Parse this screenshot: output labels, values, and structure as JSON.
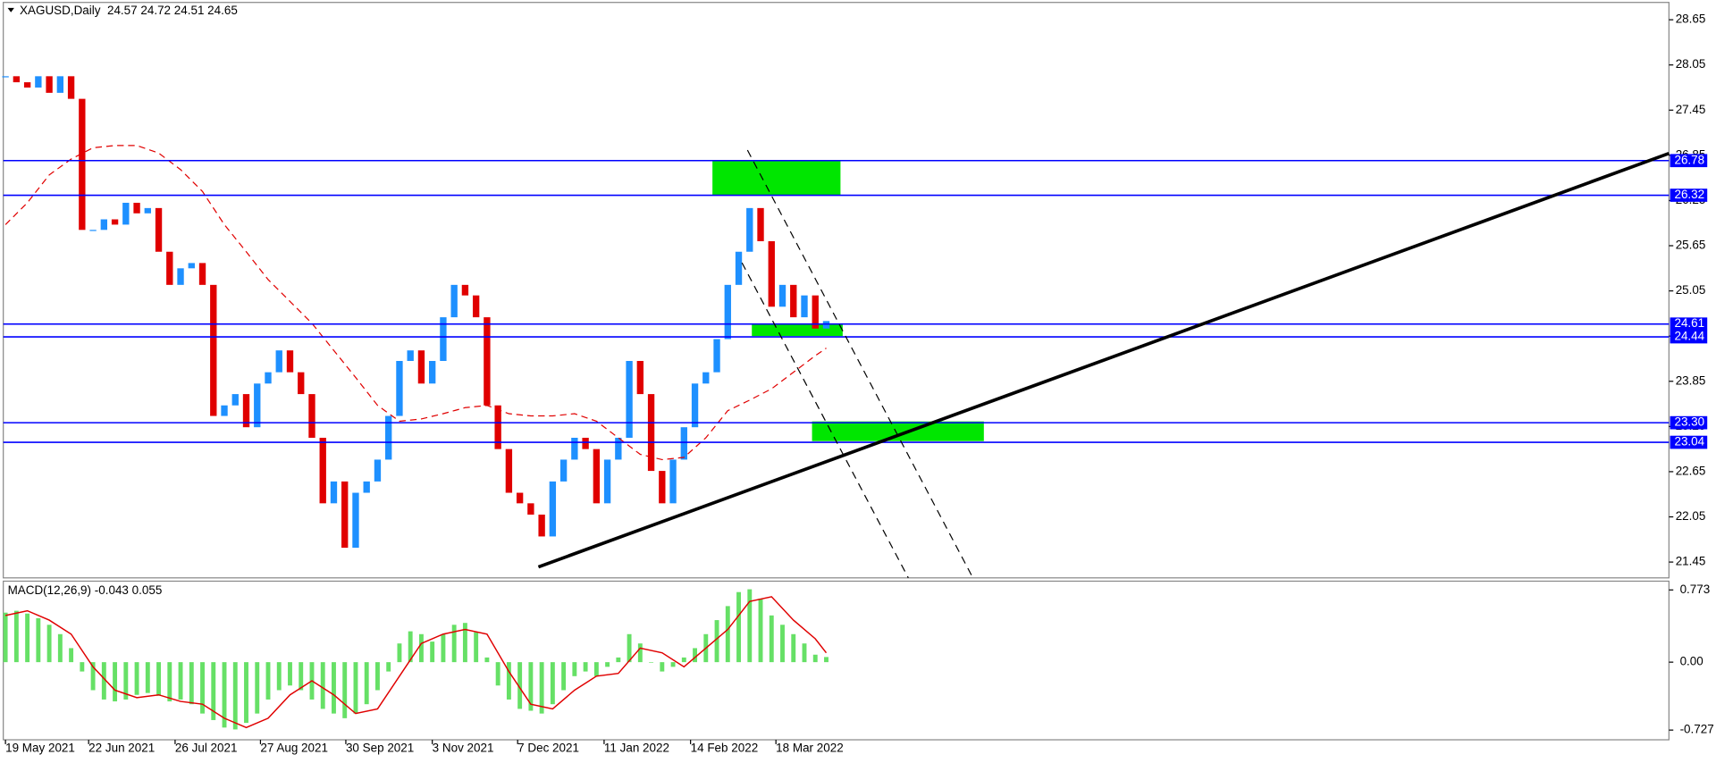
{
  "chart_data": {
    "type": "candlestick",
    "header": "XAGUSD,Daily  24.57 24.72 24.51 24.65",
    "macd_header": "MACD(12,26,9) -0.043 0.055",
    "xlim": [
      -0.5,
      152
    ],
    "xticks": [
      {
        "value": 0,
        "label": "19 May 2021"
      },
      {
        "value": 7.6,
        "label": "22 Jun 2021"
      },
      {
        "value": 15.5,
        "label": "26 Jul 2021"
      },
      {
        "value": 23.3,
        "label": "27 Aug 2021"
      },
      {
        "value": 31.1,
        "label": "30 Sep 2021"
      },
      {
        "value": 39,
        "label": "3 Nov 2021"
      },
      {
        "value": 46.8,
        "label": "7 Dec 2021"
      },
      {
        "value": 54.7,
        "label": "11 Jan 2022"
      },
      {
        "value": 62.6,
        "label": "14 Feb 2022"
      },
      {
        "value": 70.4,
        "label": "18 Mar 2022"
      }
    ],
    "ylim": [
      21.24,
      28.88
    ],
    "yticks": [
      21.45,
      22.05,
      22.65,
      23.25,
      23.85,
      24.45,
      25.05,
      25.65,
      26.25,
      26.85,
      27.45,
      28.05,
      28.65
    ],
    "x": [
      0,
      1,
      2,
      3,
      4,
      5,
      6,
      7,
      8,
      9,
      10,
      11,
      12,
      13,
      14,
      15,
      16,
      17,
      18,
      19,
      20,
      21,
      22,
      23,
      24,
      25,
      26,
      27,
      28,
      29,
      30,
      31,
      32,
      33,
      34,
      35,
      36,
      37,
      38,
      39,
      40,
      41,
      42,
      43,
      44,
      45,
      46,
      47,
      48,
      49,
      50,
      51,
      52,
      53,
      54,
      55,
      56,
      57,
      58,
      59,
      60,
      61,
      62,
      63,
      64,
      65,
      66,
      67,
      68,
      69,
      70,
      71,
      72,
      73,
      74,
      75
    ],
    "price": {
      "up_color": "#1e90ff",
      "down_color": "#e00000",
      "values": [
        27.9,
        27.82,
        27.75,
        27.9,
        27.68,
        27.9,
        27.6,
        25.86,
        25.86,
        26.0,
        25.93,
        26.22,
        26.08,
        26.15,
        25.57,
        25.13,
        25.35,
        25.42,
        25.13,
        23.39,
        23.53,
        23.68,
        23.24,
        23.82,
        23.97,
        24.26,
        23.97,
        23.68,
        23.1,
        22.23,
        22.52,
        21.64,
        22.37,
        22.52,
        22.81,
        23.39,
        24.12,
        24.26,
        23.82,
        24.12,
        24.7,
        25.13,
        24.99,
        24.7,
        23.53,
        22.95,
        22.37,
        22.23,
        22.08,
        21.79,
        22.52,
        22.81,
        23.1,
        22.95,
        22.23,
        22.81,
        23.1,
        24.12,
        23.68,
        22.66,
        22.23,
        22.81,
        23.24,
        23.82,
        23.97,
        24.41,
        25.13,
        25.57,
        26.15,
        25.71,
        24.84,
        25.13,
        24.7,
        24.99,
        24.55,
        24.65
      ]
    },
    "ma": {
      "color": "#e00000",
      "x": [
        0,
        2,
        4,
        6,
        8,
        10,
        12,
        14,
        16,
        18,
        20,
        22,
        24,
        26,
        28,
        30,
        32,
        34,
        36,
        38,
        40,
        42,
        44,
        46,
        48,
        50,
        52,
        54,
        56,
        58,
        60,
        62,
        64,
        66,
        68,
        70,
        72,
        74,
        75
      ],
      "values": [
        25.93,
        26.22,
        26.59,
        26.8,
        26.95,
        26.98,
        26.98,
        26.88,
        26.66,
        26.37,
        25.93,
        25.57,
        25.2,
        24.91,
        24.62,
        24.26,
        23.9,
        23.53,
        23.32,
        23.35,
        23.42,
        23.5,
        23.53,
        23.42,
        23.39,
        23.39,
        23.42,
        23.32,
        23.1,
        22.88,
        22.81,
        22.84,
        23.1,
        23.46,
        23.6,
        23.75,
        23.97,
        24.19,
        24.29
      ]
    },
    "levels": {
      "color": "#0000ff",
      "values": [
        26.78,
        26.32,
        24.61,
        24.44,
        {
          "value": 23.3,
          "label": "23.30"
        },
        23.04
      ]
    },
    "macd": {
      "ylim": [
        -0.831,
        0.867
      ],
      "yticks": [
        -0.727,
        {
          "value": 0,
          "label": "0.00"
        },
        0.773
      ],
      "color": "#66e066",
      "values": [
        0.53,
        0.55,
        0.52,
        0.47,
        0.4,
        0.3,
        0.15,
        -0.1,
        -0.3,
        -0.4,
        -0.42,
        -0.4,
        -0.35,
        -0.33,
        -0.36,
        -0.42,
        -0.4,
        -0.45,
        -0.55,
        -0.62,
        -0.7,
        -0.72,
        -0.65,
        -0.55,
        -0.4,
        -0.3,
        -0.25,
        -0.3,
        -0.4,
        -0.5,
        -0.55,
        -0.6,
        -0.55,
        -0.45,
        -0.3,
        -0.1,
        0.2,
        0.33,
        0.3,
        0.22,
        0.3,
        0.4,
        0.42,
        0.32,
        0.05,
        -0.25,
        -0.4,
        -0.5,
        -0.52,
        -0.55,
        -0.45,
        -0.3,
        -0.15,
        -0.1,
        -0.15,
        -0.05,
        0.05,
        0.3,
        0.2,
        0.0,
        -0.1,
        -0.05,
        0.05,
        0.15,
        0.3,
        0.45,
        0.6,
        0.75,
        0.78,
        0.68,
        0.5,
        0.4,
        0.3,
        0.2,
        0.08,
        0.055
      ]
    },
    "signal": {
      "color": "#e00000",
      "x": [
        0,
        2,
        4,
        6,
        8,
        10,
        12,
        14,
        16,
        18,
        20,
        22,
        24,
        26,
        28,
        30,
        32,
        34,
        36,
        38,
        40,
        42,
        44,
        46,
        48,
        50,
        52,
        54,
        56,
        58,
        60,
        62,
        64,
        66,
        68,
        70,
        72,
        74,
        75
      ],
      "values": [
        0.5,
        0.55,
        0.45,
        0.3,
        -0.05,
        -0.3,
        -0.38,
        -0.35,
        -0.42,
        -0.45,
        -0.6,
        -0.7,
        -0.6,
        -0.35,
        -0.2,
        -0.35,
        -0.55,
        -0.5,
        -0.15,
        0.2,
        0.3,
        0.35,
        0.3,
        -0.1,
        -0.45,
        -0.5,
        -0.3,
        -0.15,
        -0.12,
        0.15,
        0.1,
        -0.05,
        0.15,
        0.35,
        0.65,
        0.7,
        0.45,
        0.25,
        0.1
      ]
    }
  }
}
